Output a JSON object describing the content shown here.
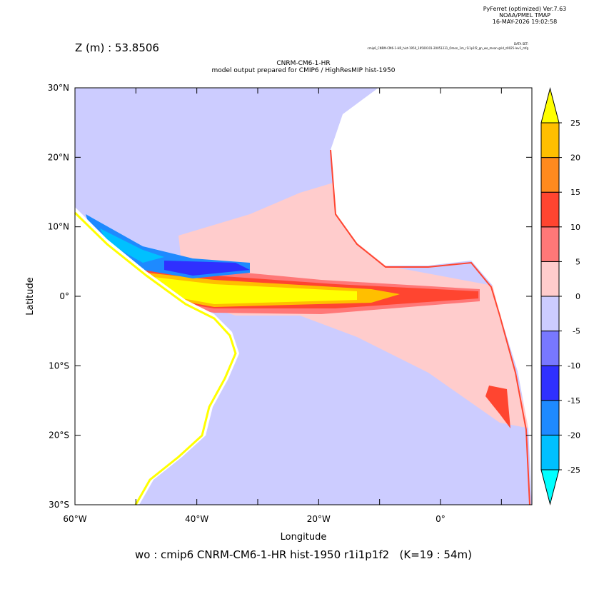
{
  "chart_data": {
    "type": "map",
    "header": [
      "PyFerret (optimized) Ver.7.63",
      "NOAA/PMEL TMAP",
      "16-MAY-2026 19:02:58"
    ],
    "z_label": "Z (m) : 53.8506",
    "dataset_label": "DATA SET:",
    "dataset": "cmip6_CNRM-CM6-1-HR_hist-1950_19500101-20051231_Omon_1m_r1i1p1f2_gn_wo_mean.grid_z0025-lev1_mfg",
    "title": "CNRM-CM6-1-HR",
    "subtitle": "model output prepared for CMIP6 / HighResMIP hist-1950",
    "xlabel": "Longitude",
    "ylabel": "Latitude",
    "footer": "wo : cmip6 CNRM-CM6-1-HR hist-1950 r1i1p1f2   (K=19 : 54m)",
    "xlim": [
      -60,
      15
    ],
    "ylim": [
      -30,
      30
    ],
    "xticks": [
      {
        "value": -60,
        "label": "60°W"
      },
      {
        "value": -40,
        "label": "40°W"
      },
      {
        "value": -20,
        "label": "20°W"
      },
      {
        "value": 0,
        "label": "0°"
      }
    ],
    "xminor_ticks": [
      -50,
      -30,
      -10,
      10
    ],
    "yticks": [
      {
        "value": -30,
        "label": "30°S"
      },
      {
        "value": -20,
        "label": "20°S"
      },
      {
        "value": -10,
        "label": "10°S"
      },
      {
        "value": 0,
        "label": "0°"
      },
      {
        "value": 10,
        "label": "10°N"
      },
      {
        "value": 20,
        "label": "20°N"
      },
      {
        "value": 30,
        "label": "30°N"
      }
    ],
    "colorbar": {
      "levels": [
        -25,
        -20,
        -15,
        -10,
        -5,
        0,
        5,
        10,
        15,
        20,
        25
      ],
      "colors": [
        "#00ffff",
        "#00c0ff",
        "#1e8aff",
        "#2f30ff",
        "#7878ff",
        "#ccccff",
        "#ffcccc",
        "#ff7878",
        "#ff4530",
        "#ff8a1e",
        "#ffbf00",
        "#ffff00"
      ]
    }
  }
}
